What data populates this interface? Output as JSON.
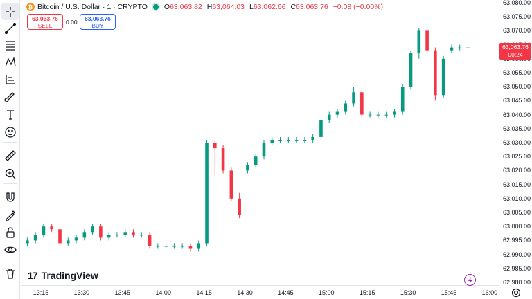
{
  "header": {
    "coin_glyph": "₿",
    "symbol": "Bitcoin / U.S. Dollar · 1 · CRYPTO",
    "open_label": "O",
    "open_value": "63,063.82",
    "high_label": "H",
    "high_value": "63,064.03",
    "low_label": "L",
    "low_value": "63,062.66",
    "close_label": "C",
    "close_value": "63,063.76",
    "change": "−0.08 (−0.00%)"
  },
  "trade": {
    "sell_price": "63,063.76",
    "sell_label": "SELL",
    "spread": "0.00",
    "buy_price": "63,063.76",
    "buy_label": "BUY"
  },
  "price_tag": {
    "price": "63,063.76",
    "countdown": "00:24"
  },
  "logo": {
    "mark": "17",
    "text": "TradingView"
  },
  "yaxis": [
    "63,080.00",
    "63,075.00",
    "63,070.00",
    "63,065.00",
    "63,060.00",
    "63,055.00",
    "63,050.00",
    "63,045.00",
    "63,040.00",
    "63,035.00",
    "63,030.00",
    "63,025.00",
    "63,020.00",
    "63,015.00",
    "63,010.00",
    "63,005.00",
    "63,000.00",
    "62,995.00",
    "62,990.00",
    "62,985.00",
    "62,980.00"
  ],
  "xaxis": [
    "13:15",
    "13:30",
    "13:45",
    "14:00",
    "14:15",
    "14:30",
    "14:45",
    "15:00",
    "15:15",
    "15:30",
    "15:45",
    "16:00"
  ],
  "colors": {
    "up": "#089981",
    "down": "#f23645",
    "accent": "#2962ff"
  },
  "toolbar_icons": [
    "crosshair-icon",
    "trendline-icon",
    "fib-icon",
    "pattern-icon",
    "forecast-icon",
    "brush-icon",
    "text-icon",
    "emoji-icon",
    "ruler-icon",
    "zoom-in-icon",
    "magnet-icon",
    "lock-draw-icon",
    "lock-icon",
    "eye-icon",
    "trash-icon"
  ],
  "chart_data": {
    "type": "candlestick",
    "x": [
      "13:07",
      "13:10",
      "13:13",
      "13:16",
      "13:19",
      "13:22",
      "13:25",
      "13:28",
      "13:31",
      "13:34",
      "13:37",
      "13:40",
      "13:43",
      "13:46",
      "13:49",
      "13:52",
      "13:55",
      "13:58",
      "14:01",
      "14:04",
      "14:07",
      "14:10",
      "14:13",
      "14:16",
      "14:19",
      "14:22",
      "14:25",
      "14:28",
      "14:31",
      "14:34",
      "14:37",
      "14:40",
      "14:43",
      "14:46",
      "14:49",
      "14:52",
      "14:55",
      "14:58",
      "15:01",
      "15:04",
      "15:07",
      "15:10",
      "15:13",
      "15:16",
      "15:19",
      "15:22",
      "15:25",
      "15:28",
      "15:31",
      "15:34",
      "15:37",
      "15:40",
      "15:43",
      "15:46",
      "15:49",
      "15:52"
    ],
    "open": [
      62988,
      62994,
      62995,
      62997,
      63000,
      62999,
      62994,
      62995,
      62996,
      62998,
      63000,
      62996,
      62997,
      62997,
      62998,
      62997,
      62997,
      62993,
      62993,
      62993,
      62993,
      62993,
      62992,
      62994,
      63030,
      63028,
      63020,
      63010,
      63020,
      63022,
      63025,
      63030,
      63031,
      63031,
      63031,
      63031,
      63031,
      63032,
      63038,
      63040,
      63041,
      63044,
      63048,
      63040,
      63040,
      63040,
      63040,
      63041,
      63050,
      63062,
      63070,
      63063,
      63047,
      63063,
      63064,
      63064
    ],
    "close": [
      62994,
      62995,
      62997,
      63000,
      62999,
      62994,
      62995,
      62996,
      62998,
      63000,
      62996,
      62997,
      62997,
      62998,
      62997,
      62997,
      62993,
      62993,
      62993,
      62993,
      62993,
      62992,
      62994,
      63030,
      63028,
      63020,
      63010,
      63004,
      63022,
      63025,
      63030,
      63031,
      63031,
      63031,
      63031,
      63031,
      63032,
      63038,
      63040,
      63041,
      63044,
      63048,
      63040,
      63040,
      63040,
      63040,
      63041,
      63050,
      63062,
      63070,
      63063,
      63047,
      63060,
      63064,
      63064,
      63064
    ],
    "high": [
      62995,
      62996,
      62998,
      63001,
      63001,
      63000,
      62996,
      62997,
      62999,
      63001,
      63001,
      62998,
      62998,
      62999,
      62999,
      62998,
      62998,
      62994,
      62994,
      62994,
      62994,
      62994,
      62995,
      63031,
      63031,
      63029,
      63021,
      63012,
      63023,
      63026,
      63031,
      63032,
      63032,
      63032,
      63032,
      63032,
      63033,
      63039,
      63041,
      63042,
      63045,
      63050,
      63049,
      63041,
      63041,
      63041,
      63042,
      63051,
      63063,
      63071,
      63070,
      63064,
      63061,
      63065,
      63065,
      63065
    ],
    "low": [
      62987,
      62993,
      62994,
      62996,
      62998,
      62993,
      62993,
      62994,
      62995,
      62997,
      62995,
      62995,
      62996,
      62996,
      62996,
      62996,
      62992,
      62992,
      62992,
      62992,
      62992,
      62991,
      62991,
      62993,
      63018,
      63019,
      63009,
      63003,
      63019,
      63021,
      63024,
      63029,
      63030,
      63030,
      63030,
      63030,
      63030,
      63031,
      63037,
      63039,
      63040,
      63043,
      63039,
      63039,
      63039,
      63039,
      63039,
      63040,
      63049,
      63060,
      63062,
      63045,
      63046,
      63062,
      63063,
      63063
    ],
    "ylim": [
      62980,
      63080
    ]
  }
}
